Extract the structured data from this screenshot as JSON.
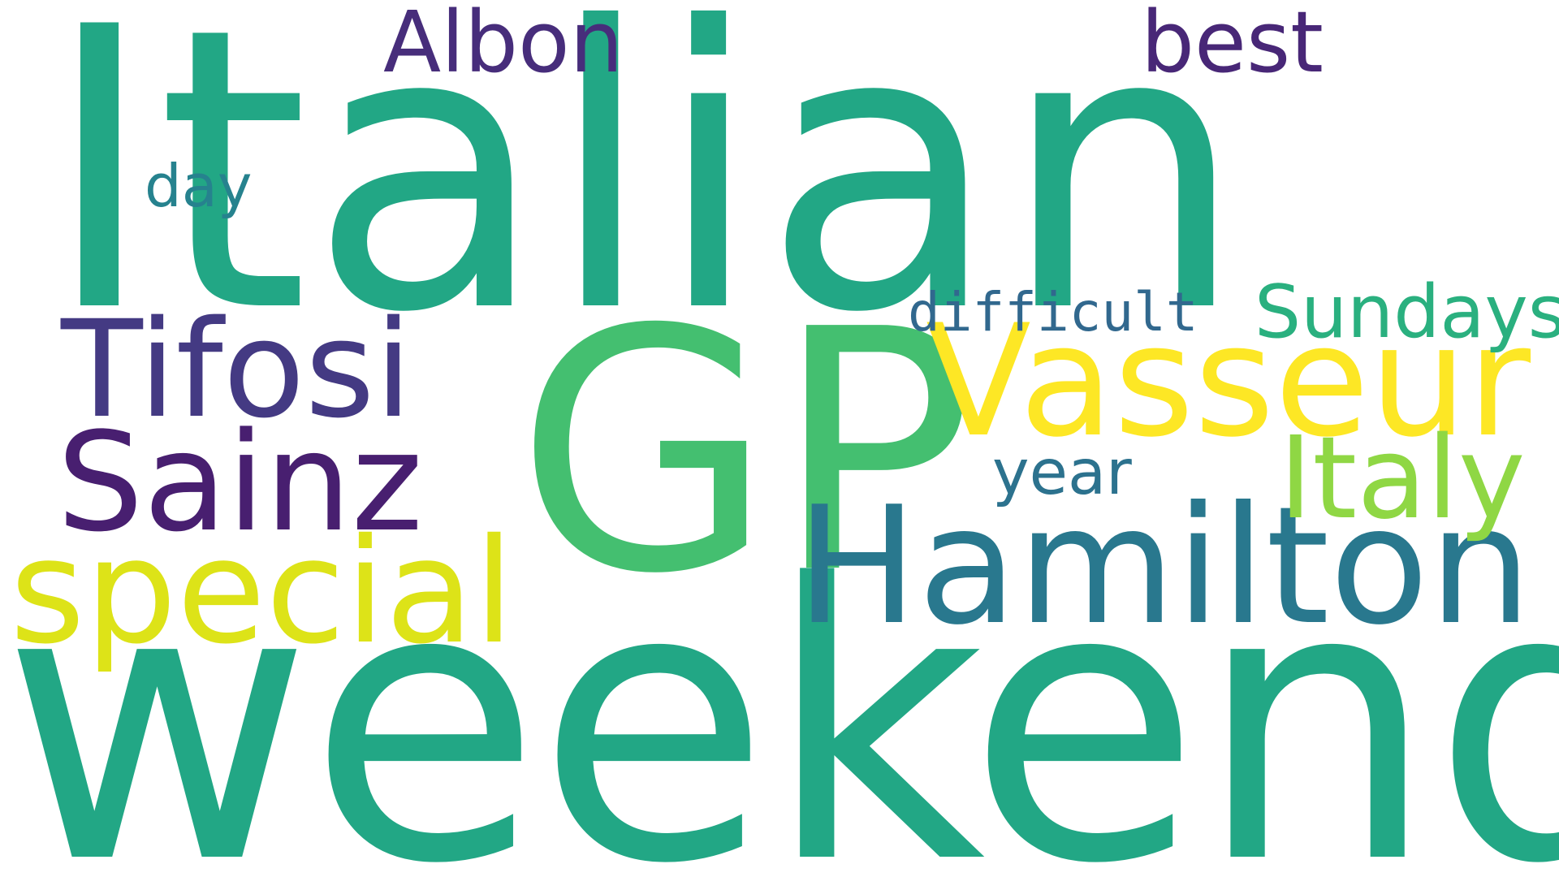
{
  "words": [
    {
      "id": "italian",
      "text": "Italian",
      "color": "#22a785"
    },
    {
      "id": "gp",
      "text": "GP",
      "color": "#44bf70"
    },
    {
      "id": "weekend",
      "text": "weekend",
      "color": "#22a785"
    },
    {
      "id": "hamilton",
      "text": "Hamilton",
      "color": "#29788e"
    },
    {
      "id": "vasseur",
      "text": "Vasseur",
      "color": "#fde725"
    },
    {
      "id": "tifosi",
      "text": "Tifosi",
      "color": "#443a83"
    },
    {
      "id": "sainz",
      "text": "Sainz",
      "color": "#481f70"
    },
    {
      "id": "special",
      "text": "special",
      "color": "#dde318"
    },
    {
      "id": "italy",
      "text": "Italy",
      "color": "#8fd744"
    },
    {
      "id": "albon",
      "text": "Albon",
      "color": "#472d7b"
    },
    {
      "id": "best",
      "text": "best",
      "color": "#482777"
    },
    {
      "id": "sundays",
      "text": "Sundays",
      "color": "#2ab07f"
    },
    {
      "id": "difficult",
      "text": "difficult",
      "color": "#31688e"
    },
    {
      "id": "year",
      "text": "year",
      "color": "#2c728e"
    },
    {
      "id": "day",
      "text": "day",
      "color": "#26828e"
    }
  ]
}
